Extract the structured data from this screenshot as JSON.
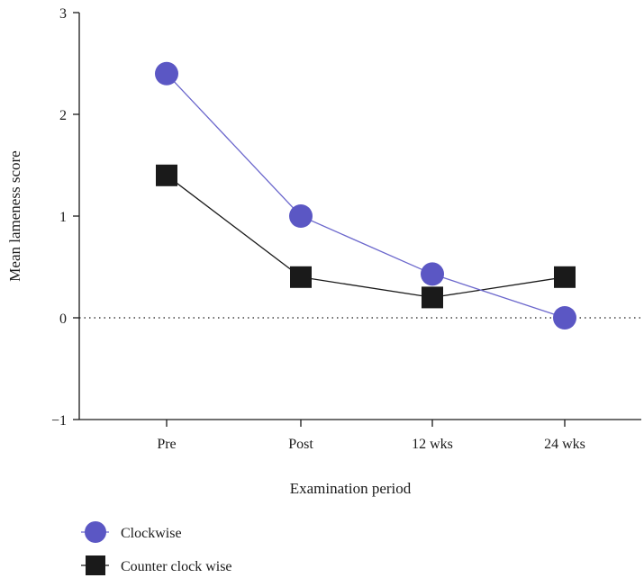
{
  "chart_data": {
    "type": "line",
    "title": "",
    "xlabel": "Examination period",
    "ylabel": "Mean lameness score",
    "categories": [
      "Pre",
      "Post",
      "12 wks",
      "24 wks"
    ],
    "yticks": [
      "3",
      "2",
      "1",
      "0",
      "−1"
    ],
    "ylim": [
      -1,
      3
    ],
    "reference_line": {
      "y": 0,
      "style": "dotted"
    },
    "grid": false,
    "legend_position": "bottom-left",
    "series": [
      {
        "name": "Clockwise",
        "marker": "circle",
        "color": "#5b57c4",
        "line_color": "#6b67cc",
        "values": [
          2.4,
          1.0,
          0.43,
          0.0
        ]
      },
      {
        "name": "Counter clock wise",
        "marker": "square",
        "color": "#1a1a1a",
        "line_color": "#1a1a1a",
        "values": [
          1.4,
          0.4,
          0.2,
          0.4
        ]
      }
    ]
  }
}
